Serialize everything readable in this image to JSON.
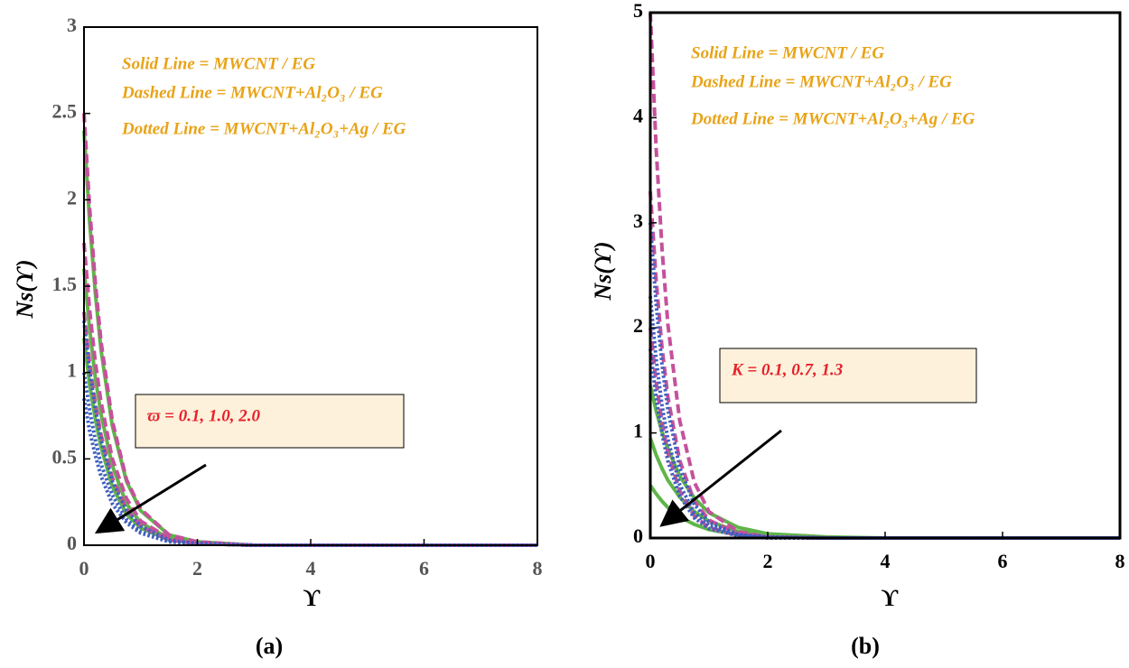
{
  "chart_data": [
    {
      "type": "line",
      "title": "(a)",
      "xlabel": "ϒ",
      "ylabel": "Ns(ϒ)",
      "annotations": [
        "Solid Line = MWCNT / EG",
        "Dashed Line = MWCNT+Al₂O₃ / EG",
        "Dotted Line = MWCNT+Al₂O₃+Ag / EG"
      ],
      "box_label": "ϖ = 0.1, 1.0, 2.0",
      "x": [
        0,
        0.1,
        0.2,
        0.3,
        0.5,
        0.75,
        1,
        1.5,
        2,
        3,
        4,
        6,
        8
      ],
      "xlim": [
        0,
        8
      ],
      "xticks": [
        0,
        2,
        4,
        6,
        8
      ],
      "ylim": [
        0,
        3
      ],
      "yticks": [
        0,
        0.5,
        1,
        1.5,
        2,
        2.5,
        3
      ],
      "grid": false,
      "series": [
        {
          "color": "#5fb548",
          "dash": "solid",
          "values": [
            2.4,
            1.87,
            1.46,
            1.13,
            0.69,
            0.37,
            0.2,
            0.06,
            0.02,
            0,
            0,
            0,
            0
          ]
        },
        {
          "color": "#5fb548",
          "dash": "solid",
          "values": [
            1.6,
            1.25,
            0.97,
            0.76,
            0.46,
            0.24,
            0.13,
            0.04,
            0.01,
            0,
            0,
            0,
            0
          ]
        },
        {
          "color": "#5fb548",
          "dash": "solid",
          "values": [
            1.2,
            0.93,
            0.73,
            0.57,
            0.34,
            0.18,
            0.1,
            0.03,
            0.01,
            0,
            0,
            0,
            0
          ]
        },
        {
          "color": "#c5519c",
          "dash": "dashed",
          "values": [
            2.5,
            1.95,
            1.52,
            1.18,
            0.72,
            0.38,
            0.21,
            0.06,
            0.02,
            0,
            0,
            0,
            0
          ]
        },
        {
          "color": "#c5519c",
          "dash": "dashed",
          "values": [
            1.75,
            1.36,
            1.06,
            0.83,
            0.5,
            0.27,
            0.14,
            0.04,
            0.01,
            0,
            0,
            0,
            0
          ]
        },
        {
          "color": "#c5519c",
          "dash": "dashed",
          "values": [
            1.35,
            1.05,
            0.82,
            0.64,
            0.39,
            0.21,
            0.11,
            0.03,
            0.01,
            0,
            0,
            0,
            0
          ]
        },
        {
          "color": "#3f5fc0",
          "dash": "dotted",
          "values": [
            1.3,
            1.01,
            0.79,
            0.61,
            0.37,
            0.2,
            0.11,
            0.03,
            0.01,
            0,
            0,
            0,
            0
          ]
        },
        {
          "color": "#3f5fc0",
          "dash": "dotted",
          "values": [
            1,
            0.78,
            0.61,
            0.47,
            0.29,
            0.15,
            0.08,
            0.02,
            0.01,
            0,
            0,
            0,
            0
          ]
        },
        {
          "color": "#3f5fc0",
          "dash": "dotted",
          "values": [
            0.85,
            0.66,
            0.52,
            0.4,
            0.24,
            0.13,
            0.07,
            0.02,
            0.01,
            0,
            0,
            0,
            0
          ]
        }
      ]
    },
    {
      "type": "line",
      "title": "(b)",
      "xlabel": "ϒ",
      "ylabel": "Ns(ϒ)",
      "annotations": [
        "Solid Line = MWCNT / EG",
        "Dashed Line = MWCNT+Al₂O₃ / EG",
        "Dotted Line = MWCNT+Al₂O₃+Ag / EG"
      ],
      "box_label": "K = 0.1, 0.7, 1.3",
      "x": [
        0,
        0.1,
        0.2,
        0.3,
        0.5,
        0.75,
        1,
        1.5,
        2,
        3,
        4,
        6,
        8
      ],
      "xlim": [
        0,
        8
      ],
      "xticks": [
        0,
        2,
        4,
        6,
        8
      ],
      "ylim": [
        0,
        5
      ],
      "yticks": [
        0,
        1,
        2,
        3,
        4,
        5
      ],
      "grid": false,
      "series": [
        {
          "color": "#5fb548",
          "dash": "solid",
          "values": [
            1.45,
            1.21,
            1.01,
            0.85,
            0.59,
            0.38,
            0.24,
            0.1,
            0.04,
            0.01,
            0,
            0,
            0
          ]
        },
        {
          "color": "#5fb548",
          "dash": "solid",
          "values": [
            0.95,
            0.79,
            0.66,
            0.55,
            0.39,
            0.25,
            0.16,
            0.06,
            0.03,
            0,
            0,
            0,
            0
          ]
        },
        {
          "color": "#5fb548",
          "dash": "solid",
          "values": [
            0.5,
            0.42,
            0.35,
            0.29,
            0.2,
            0.13,
            0.08,
            0.03,
            0.01,
            0,
            0,
            0,
            0
          ]
        },
        {
          "color": "#c5519c",
          "dash": "dashed",
          "values": [
            5,
            3.7,
            2.75,
            2.03,
            1.12,
            0.53,
            0.25,
            0.06,
            0.01,
            0,
            0,
            0,
            0
          ]
        },
        {
          "color": "#c5519c",
          "dash": "dashed",
          "values": [
            3.3,
            2.45,
            1.81,
            1.34,
            0.74,
            0.35,
            0.17,
            0.04,
            0.01,
            0,
            0,
            0,
            0
          ]
        },
        {
          "color": "#c5519c",
          "dash": "dashed",
          "values": [
            2,
            1.48,
            1.1,
            0.81,
            0.45,
            0.21,
            0.1,
            0.02,
            0.01,
            0,
            0,
            0,
            0
          ]
        },
        {
          "color": "#3f5fc0",
          "dash": "dotted",
          "values": [
            3,
            2.22,
            1.65,
            1.22,
            0.67,
            0.32,
            0.15,
            0.03,
            0.01,
            0,
            0,
            0,
            0
          ]
        },
        {
          "color": "#3f5fc0",
          "dash": "dotted",
          "values": [
            2.3,
            1.7,
            1.26,
            0.94,
            0.51,
            0.24,
            0.12,
            0.03,
            0.01,
            0,
            0,
            0,
            0
          ]
        },
        {
          "color": "#3f5fc0",
          "dash": "dotted",
          "values": [
            1.8,
            1.33,
            0.99,
            0.73,
            0.4,
            0.19,
            0.09,
            0.02,
            0,
            0,
            0,
            0,
            0
          ]
        }
      ]
    }
  ]
}
